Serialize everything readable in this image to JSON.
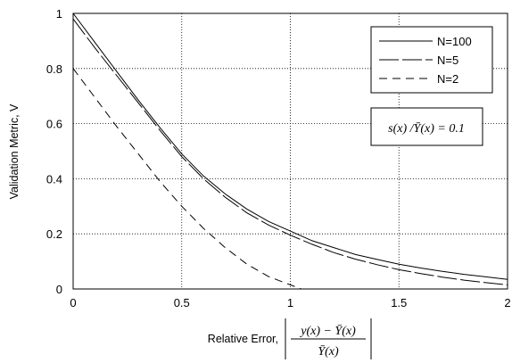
{
  "chart_data": {
    "type": "line",
    "xlabel": "Relative Error,",
    "xlabel_expression": {
      "numerator": "y(x) − Ȳ(x)",
      "denominator": "Ȳ(x)"
    },
    "ylabel": "Validation Metric, V",
    "xlim": [
      0,
      2
    ],
    "ylim": [
      0,
      1
    ],
    "xticks": [
      "0",
      "0.5",
      "1",
      "1.5",
      "2"
    ],
    "yticks": [
      "0",
      "0.2",
      "0.4",
      "0.6",
      "0.8",
      "1"
    ],
    "grid": true,
    "legend_position": "top-right",
    "annotation": "s(x) /Ȳ(x) = 0.1",
    "series": [
      {
        "name": "N=100",
        "line_style": "solid",
        "x": [
          0,
          0.1,
          0.2,
          0.3,
          0.4,
          0.5,
          0.6,
          0.7,
          0.8,
          0.9,
          1.0,
          1.1,
          1.2,
          1.3,
          1.4,
          1.5,
          1.6,
          1.7,
          1.8,
          1.9,
          2.0
        ],
        "y": [
          1.0,
          0.895,
          0.79,
          0.685,
          0.585,
          0.49,
          0.41,
          0.345,
          0.29,
          0.245,
          0.21,
          0.175,
          0.15,
          0.125,
          0.107,
          0.09,
          0.076,
          0.064,
          0.053,
          0.044,
          0.035
        ]
      },
      {
        "name": "N=5",
        "line_style": "long-dash",
        "x": [
          0,
          0.1,
          0.2,
          0.3,
          0.4,
          0.5,
          0.6,
          0.7,
          0.8,
          0.9,
          1.0,
          1.1,
          1.2,
          1.3,
          1.4,
          1.5,
          1.6,
          1.7,
          1.8,
          1.9,
          2.0
        ],
        "y": [
          0.98,
          0.875,
          0.775,
          0.675,
          0.575,
          0.48,
          0.4,
          0.333,
          0.276,
          0.232,
          0.195,
          0.162,
          0.132,
          0.108,
          0.088,
          0.07,
          0.056,
          0.043,
          0.032,
          0.023,
          0.015
        ]
      },
      {
        "name": "N=2",
        "line_style": "dash",
        "x": [
          0,
          0.1,
          0.2,
          0.3,
          0.4,
          0.5,
          0.6,
          0.7,
          0.8,
          0.9,
          1.0,
          1.05
        ],
        "y": [
          0.8,
          0.695,
          0.59,
          0.49,
          0.39,
          0.3,
          0.22,
          0.15,
          0.09,
          0.045,
          0.015,
          0.0
        ]
      }
    ]
  }
}
